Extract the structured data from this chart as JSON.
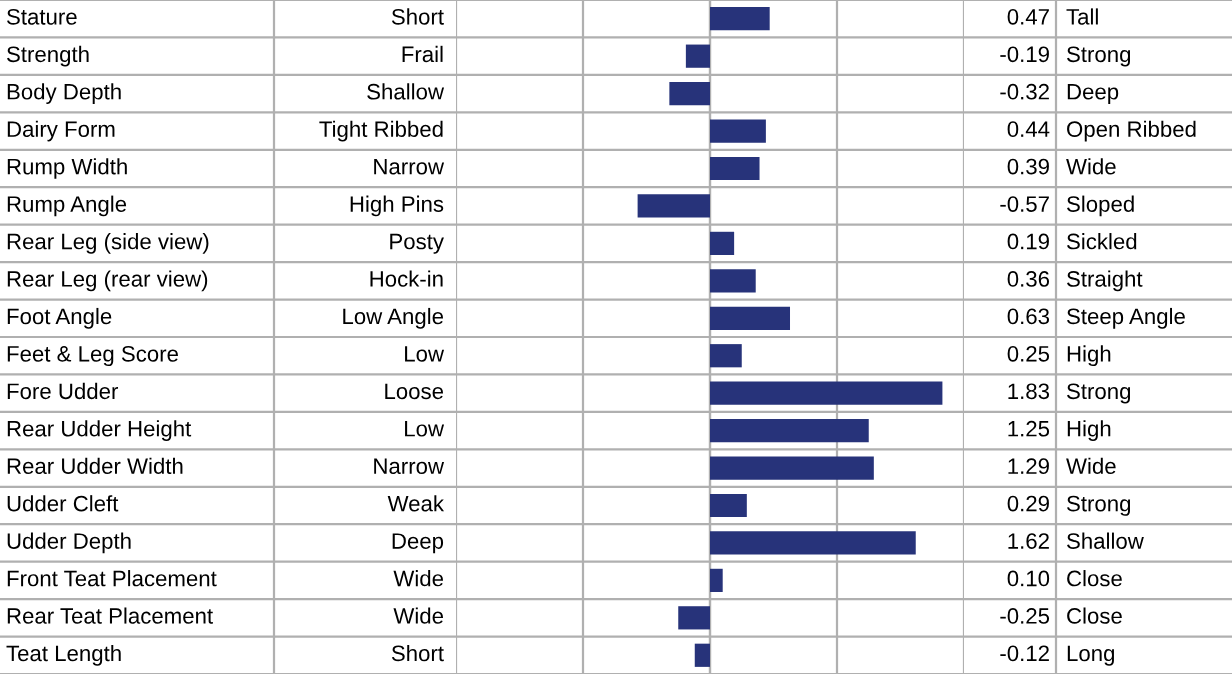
{
  "chart_data": {
    "type": "bar",
    "orientation": "horizontal",
    "categories": [
      "Stature",
      "Strength",
      "Body Depth",
      "Dairy Form",
      "Rump Width",
      "Rump Angle",
      "Rear Leg (side view)",
      "Rear Leg (rear view)",
      "Foot Angle",
      "Feet & Leg Score",
      "Fore Udder",
      "Rear Udder Height",
      "Rear Udder Width",
      "Udder Cleft",
      "Udder Depth",
      "Front Teat Placement",
      "Rear Teat Placement",
      "Teat Length"
    ],
    "values": [
      0.47,
      -0.19,
      -0.32,
      0.44,
      0.39,
      -0.57,
      0.19,
      0.36,
      0.63,
      0.25,
      1.83,
      1.25,
      1.29,
      0.29,
      1.62,
      0.1,
      -0.25,
      -0.12
    ],
    "value_labels": [
      "0.47",
      "-0.19",
      "-0.32",
      "0.44",
      "0.39",
      "-0.57",
      "0.19",
      "0.36",
      "0.63",
      "0.25",
      "1.83",
      "1.25",
      "1.29",
      "0.29",
      "1.62",
      "0.10",
      "-0.25",
      "-0.12"
    ],
    "color": "#27337a",
    "xlim": [
      -2,
      2
    ],
    "xticks": [
      {
        "value": -2,
        "label": null
      },
      {
        "value": -1,
        "label": null
      },
      {
        "value": 0,
        "label": null
      },
      {
        "value": 1,
        "label": null
      },
      {
        "value": 2,
        "label": null
      }
    ],
    "grid": "x",
    "annotations": [
      "Short",
      "Tall",
      "Frail",
      "Strong",
      "Shallow",
      "Deep",
      "Tight Ribbed",
      "Open Ribbed",
      "Narrow",
      "Wide",
      "High Pins",
      "Sloped",
      "Posty",
      "Sickled",
      "Hock-in",
      "Straight",
      "Low Angle",
      "Steep Angle",
      "Low",
      "High",
      "Loose",
      "Strong",
      "Low",
      "High",
      "Narrow",
      "Wide",
      "Weak",
      "Strong",
      "Deep",
      "Shallow",
      "Wide",
      "Close",
      "Wide",
      "Close",
      "Short",
      "Long"
    ]
  }
}
